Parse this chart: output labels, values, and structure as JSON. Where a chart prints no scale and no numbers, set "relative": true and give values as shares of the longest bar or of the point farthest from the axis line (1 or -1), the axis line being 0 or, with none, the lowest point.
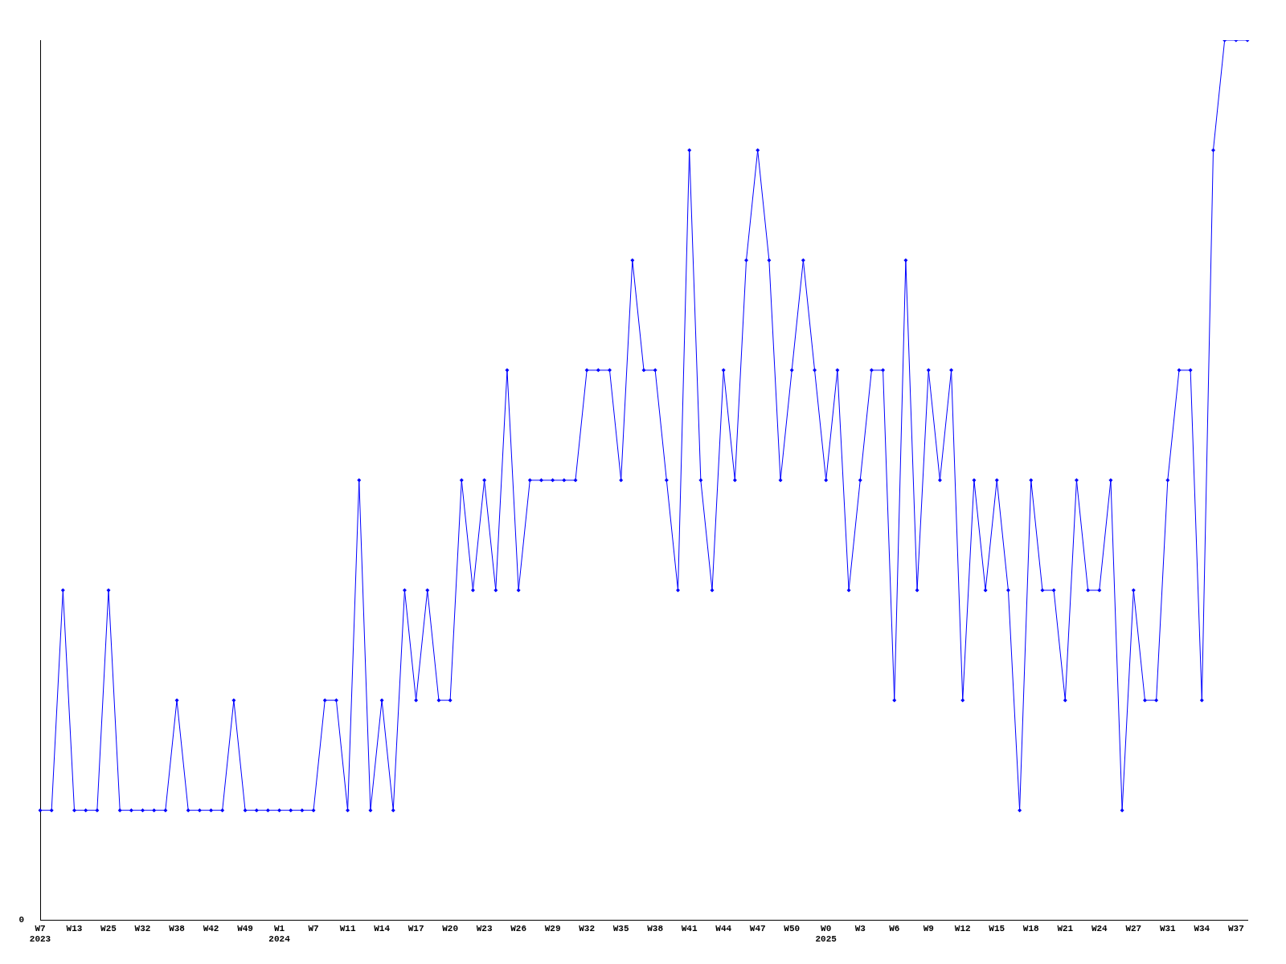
{
  "chart_data": {
    "type": "line",
    "relative": true,
    "annotations": [
      "0"
    ],
    "grid": false,
    "legend": false,
    "marker": "diamond",
    "line_style": "solid",
    "categories": [
      "W7\n2023",
      null,
      null,
      "W13",
      null,
      null,
      "W25",
      null,
      null,
      "W32",
      null,
      null,
      "W38",
      null,
      null,
      "W42",
      null,
      null,
      "W49",
      null,
      null,
      "W1\n2024",
      null,
      null,
      "W7",
      null,
      null,
      "W11",
      null,
      null,
      "W14",
      null,
      null,
      "W17",
      null,
      null,
      "W20",
      null,
      null,
      "W23",
      null,
      null,
      "W26",
      null,
      null,
      "W29",
      null,
      null,
      "W32",
      null,
      null,
      "W35",
      null,
      null,
      "W38",
      null,
      null,
      "W41",
      null,
      null,
      "W44",
      null,
      null,
      "W47",
      null,
      null,
      "W50",
      null,
      null,
      "W0\n2025",
      null,
      null,
      "W3",
      null,
      null,
      "W6",
      null,
      null,
      "W9",
      null,
      null,
      "W12",
      null,
      null,
      "W15",
      null,
      null,
      "W18",
      null,
      null,
      "W21",
      null,
      null,
      "W24",
      null,
      null,
      "W27",
      null,
      null,
      "W31",
      null,
      null,
      "W34",
      null,
      null,
      "W37",
      null
    ],
    "series": [
      {
        "color": "#0000ff",
        "values": [
          0.125,
          0.125,
          0.375,
          0.125,
          0.125,
          0.125,
          0.375,
          0.125,
          0.125,
          0.125,
          0.125,
          0.125,
          0.25,
          0.125,
          0.125,
          0.125,
          0.125,
          0.25,
          0.125,
          0.125,
          0.125,
          0.125,
          0.125,
          0.125,
          0.125,
          0.25,
          0.25,
          0.125,
          0.5,
          0.125,
          0.25,
          0.125,
          0.375,
          0.25,
          0.375,
          0.25,
          0.25,
          0.5,
          0.375,
          0.5,
          0.375,
          0.625,
          0.375,
          0.5,
          0.5,
          0.5,
          0.5,
          0.5,
          0.625,
          0.625,
          0.625,
          0.5,
          0.75,
          0.625,
          0.625,
          0.5,
          0.375,
          0.875,
          0.5,
          0.375,
          0.625,
          0.5,
          0.75,
          0.875,
          0.75,
          0.5,
          0.625,
          0.75,
          0.625,
          0.5,
          0.625,
          0.375,
          0.5,
          0.625,
          0.625,
          0.25,
          0.75,
          0.375,
          0.625,
          0.5,
          0.625,
          0.25,
          0.5,
          0.375,
          0.5,
          0.375,
          0.125,
          0.5,
          0.375,
          0.375,
          0.25,
          0.5,
          0.375,
          0.375,
          0.5,
          0.125,
          0.375,
          0.25,
          0.25,
          0.5,
          0.625,
          0.625,
          0.25,
          0.875,
          1,
          1,
          1
        ]
      }
    ]
  }
}
